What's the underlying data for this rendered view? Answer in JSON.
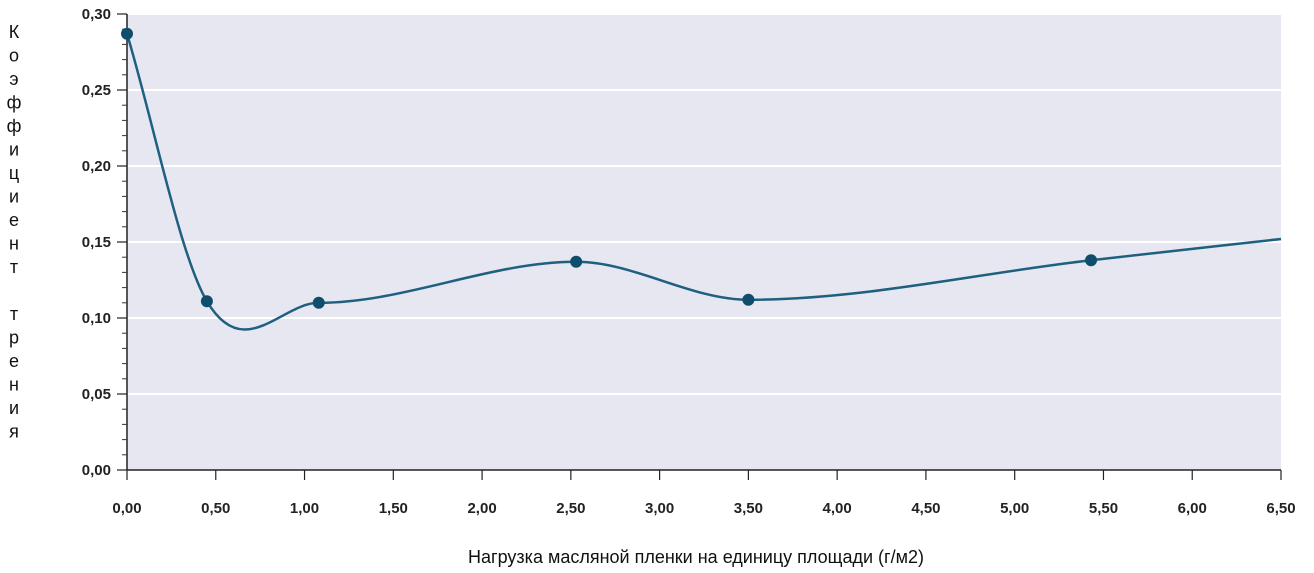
{
  "chart_data": {
    "type": "line",
    "title": "",
    "xlabel": "Нагрузка масляной пленки на единицу площади (г/м2)",
    "ylabel": "Коэффициент трения",
    "xlim": [
      0,
      6.5
    ],
    "ylim": [
      0,
      0.3
    ],
    "x_ticks": [
      "0,00",
      "0,50",
      "1,00",
      "1,50",
      "2,00",
      "2,50",
      "3,00",
      "3,50",
      "4,00",
      "4,50",
      "5,00",
      "5,50",
      "6,00",
      "6,50"
    ],
    "y_ticks": [
      "0,00",
      "0,05",
      "0,10",
      "0,15",
      "0,20",
      "0,25",
      "0,30"
    ],
    "grid": true,
    "smooth": true,
    "series": [
      {
        "points": [
          {
            "x": 0.0,
            "y": 0.287
          },
          {
            "x": 0.45,
            "y": 0.111
          },
          {
            "x": 1.08,
            "y": 0.11
          },
          {
            "x": 2.53,
            "y": 0.137
          },
          {
            "x": 3.5,
            "y": 0.112
          },
          {
            "x": 5.43,
            "y": 0.138
          }
        ],
        "line_end": {
          "x": 6.5,
          "y": 0.152
        }
      }
    ],
    "colors": {
      "line": "#1f5f80",
      "marker": "#0e4e6c",
      "plot_background": "#e6e7f0",
      "grid": "#ffffff"
    }
  }
}
